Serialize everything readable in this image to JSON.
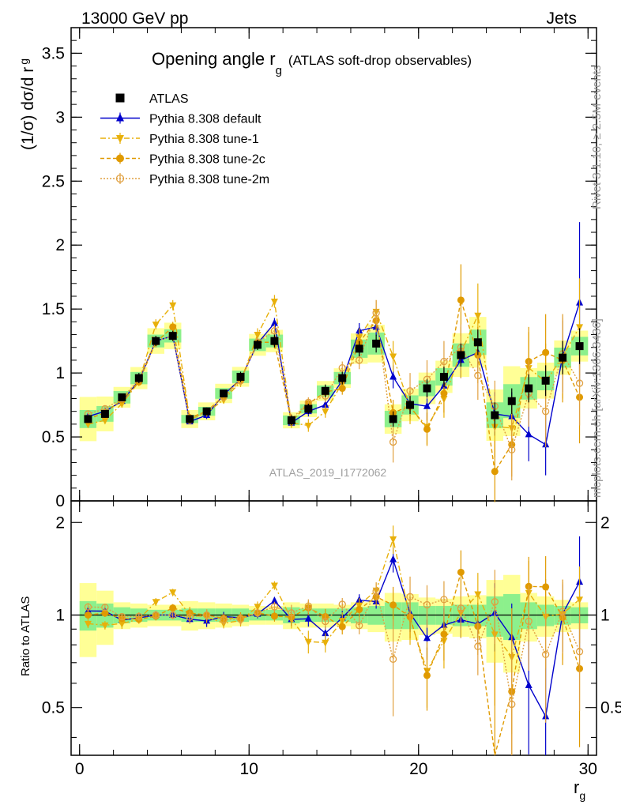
{
  "header": {
    "left": "13000 GeV pp",
    "right": "Jets"
  },
  "title": {
    "main": "Opening angle r",
    "sub": "g",
    "paren": "(ATLAS soft-drop observables)"
  },
  "ylabel": {
    "text": "(1/σ) dσ/d r",
    "sub": "g"
  },
  "xlabel": {
    "text": "r",
    "sub": "g"
  },
  "ratio_ylabel": "Ratio to ATLAS",
  "side_labels": {
    "rivet": "Rivet 3.1.10, ≥ 2.5M events",
    "mcplots": "mcplots.cern.ch [arXiv:1306.3436]"
  },
  "analysis_id": "ATLAS_2019_I1772062",
  "colors": {
    "data": "#000000",
    "default": "#0000cc",
    "tune1": "#e8b00a",
    "tune2c": "#e09a00",
    "tune2m": "#e0a040",
    "band_green": "#8cf08c",
    "band_yellow": "#ffff96"
  },
  "chart_data": [
    {
      "type": "line",
      "title": "Opening angle r_g (ATLAS soft-drop observables)",
      "xlabel": "r_g",
      "ylabel": "(1/σ) dσ/d r_g",
      "xlim": [
        -0.5,
        30.5
      ],
      "ylim": [
        0,
        3.7
      ],
      "x_ticks": [
        0,
        10,
        20,
        30
      ],
      "y_ticks": [
        0,
        0.5,
        1,
        1.5,
        2,
        2.5,
        3,
        3.5
      ],
      "legend_position": "top-left",
      "x": [
        0.5,
        1.5,
        2.5,
        3.5,
        4.5,
        5.5,
        6.5,
        7.5,
        8.5,
        9.5,
        10.5,
        11.5,
        12.5,
        13.5,
        14.5,
        15.5,
        16.5,
        17.5,
        18.5,
        19.5,
        20.5,
        21.5,
        22.5,
        23.5,
        24.5,
        25.5,
        26.5,
        27.5,
        28.5,
        29.5
      ],
      "series": [
        {
          "name": "ATLAS",
          "marker": "square",
          "values": [
            0.64,
            0.68,
            0.81,
            0.96,
            1.25,
            1.29,
            0.64,
            0.7,
            0.84,
            0.97,
            1.22,
            1.25,
            0.63,
            0.72,
            0.86,
            0.96,
            1.19,
            1.23,
            0.64,
            0.75,
            0.88,
            0.97,
            1.14,
            1.24,
            0.67,
            0.78,
            0.88,
            0.94,
            1.12,
            1.21
          ],
          "errors": [
            0.03,
            0.03,
            0.03,
            0.04,
            0.04,
            0.04,
            0.03,
            0.03,
            0.03,
            0.04,
            0.04,
            0.05,
            0.04,
            0.04,
            0.05,
            0.05,
            0.06,
            0.07,
            0.06,
            0.07,
            0.07,
            0.08,
            0.09,
            0.1,
            0.1,
            0.1,
            0.11,
            0.12,
            0.13,
            0.14
          ]
        },
        {
          "name": "Pythia 8.308 default",
          "marker": "triangle-up",
          "values": [
            0.66,
            0.7,
            0.78,
            0.94,
            1.25,
            1.29,
            0.62,
            0.67,
            0.83,
            0.95,
            1.23,
            1.39,
            0.61,
            0.7,
            0.75,
            0.94,
            1.33,
            1.36,
            0.97,
            0.76,
            0.74,
            0.9,
            1.1,
            1.16,
            0.68,
            0.66,
            0.52,
            0.44,
            1.13,
            1.55
          ],
          "errors": [
            0.02,
            0.02,
            0.02,
            0.03,
            0.03,
            0.03,
            0.02,
            0.03,
            0.03,
            0.03,
            0.04,
            0.04,
            0.03,
            0.04,
            0.04,
            0.05,
            0.06,
            0.07,
            0.09,
            0.1,
            0.11,
            0.12,
            0.14,
            0.16,
            0.17,
            0.19,
            0.21,
            0.24,
            0.28,
            0.63
          ]
        },
        {
          "name": "Pythia 8.308 tune-1",
          "marker": "triangle-down",
          "values": [
            0.6,
            0.63,
            0.76,
            0.93,
            1.38,
            1.53,
            0.64,
            0.69,
            0.79,
            0.93,
            1.3,
            1.56,
            0.61,
            0.59,
            0.7,
            0.92,
            1.28,
            1.48,
            1.13,
            0.73,
            0.58,
            0.8,
            1.16,
            1.45,
            0.58,
            0.57,
            1.04,
            0.93,
            1.13,
            1.36
          ],
          "errors": [
            0.02,
            0.02,
            0.03,
            0.03,
            0.04,
            0.04,
            0.03,
            0.03,
            0.03,
            0.04,
            0.05,
            0.05,
            0.04,
            0.05,
            0.05,
            0.06,
            0.07,
            0.09,
            0.12,
            0.13,
            0.14,
            0.15,
            0.2,
            0.25,
            0.24,
            0.25,
            0.28,
            0.3,
            0.33,
            0.38
          ]
        },
        {
          "name": "Pythia 8.308 tune-2c",
          "marker": "circle",
          "values": [
            0.64,
            0.69,
            0.79,
            0.93,
            1.24,
            1.36,
            0.65,
            0.7,
            0.82,
            0.95,
            1.24,
            1.24,
            0.62,
            0.76,
            0.85,
            0.88,
            1.24,
            1.41,
            0.69,
            0.74,
            0.56,
            0.84,
            1.57,
            1.14,
            0.23,
            0.44,
            1.09,
            1.16,
            1.1,
            0.81
          ],
          "errors": [
            0.02,
            0.02,
            0.02,
            0.03,
            0.04,
            0.04,
            0.03,
            0.03,
            0.03,
            0.04,
            0.04,
            0.05,
            0.04,
            0.04,
            0.05,
            0.05,
            0.07,
            0.09,
            0.1,
            0.11,
            0.13,
            0.15,
            0.28,
            0.22,
            0.24,
            0.25,
            0.27,
            0.3,
            0.33,
            0.36
          ]
        },
        {
          "name": "Pythia 8.308 tune-2m",
          "marker": "circle-open",
          "values": [
            0.68,
            0.72,
            0.8,
            0.95,
            1.25,
            1.29,
            0.63,
            0.7,
            0.81,
            0.94,
            1.24,
            1.33,
            0.64,
            0.77,
            0.82,
            1.04,
            1.1,
            1.47,
            0.46,
            0.86,
            0.95,
            1.09,
            1.2,
            0.98,
            0.74,
            0.4,
            0.84,
            0.7,
            1.15,
            0.92
          ],
          "errors": [
            0.02,
            0.02,
            0.02,
            0.03,
            0.04,
            0.04,
            0.03,
            0.03,
            0.03,
            0.04,
            0.04,
            0.05,
            0.04,
            0.04,
            0.05,
            0.05,
            0.07,
            0.1,
            0.16,
            0.14,
            0.15,
            0.16,
            0.18,
            0.19,
            0.2,
            0.24,
            0.26,
            0.28,
            0.31,
            0.33
          ]
        }
      ]
    },
    {
      "type": "line",
      "xlabel": "r_g",
      "ylabel": "Ratio to ATLAS",
      "xlim": [
        -0.5,
        30.5
      ],
      "ylim": [
        0.35,
        2.35
      ],
      "y_ticks": [
        0.5,
        1,
        2
      ],
      "y_scale": "log",
      "reference_line": 1,
      "band_green": [
        0.11,
        0.09,
        0.06,
        0.05,
        0.04,
        0.04,
        0.05,
        0.05,
        0.05,
        0.05,
        0.04,
        0.04,
        0.06,
        0.05,
        0.05,
        0.05,
        0.06,
        0.07,
        0.1,
        0.1,
        0.07,
        0.07,
        0.08,
        0.08,
        0.15,
        0.17,
        0.1,
        0.08,
        0.07,
        0.06
      ],
      "band_yellow": [
        0.27,
        0.2,
        0.1,
        0.09,
        0.08,
        0.08,
        0.11,
        0.1,
        0.09,
        0.08,
        0.07,
        0.07,
        0.1,
        0.09,
        0.09,
        0.08,
        0.1,
        0.12,
        0.18,
        0.17,
        0.14,
        0.13,
        0.15,
        0.16,
        0.3,
        0.35,
        0.18,
        0.15,
        0.12,
        0.1
      ]
    }
  ]
}
